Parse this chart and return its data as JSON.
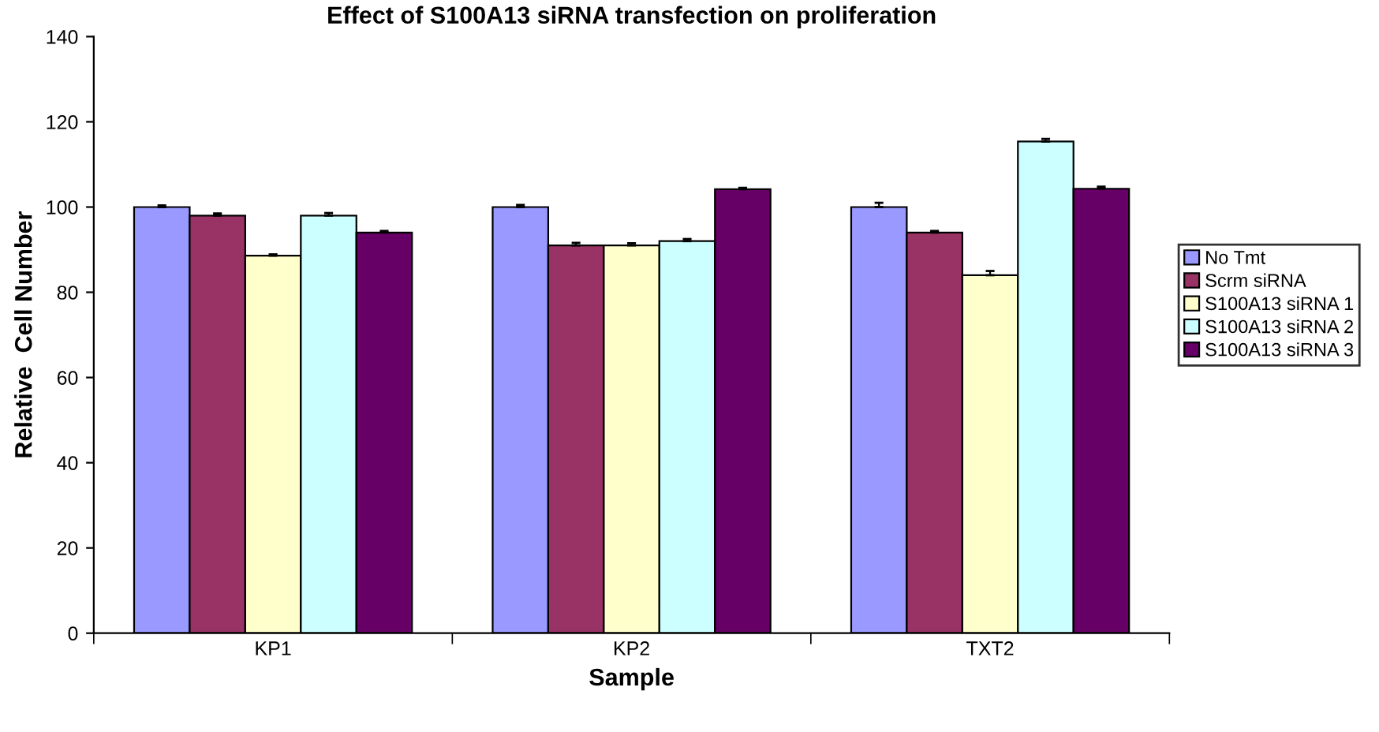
{
  "chart_data": {
    "type": "bar",
    "title": "Effect of S100A13 siRNA transfection on proliferation",
    "xlabel": "Sample",
    "ylabel": "Relative  Cell Number",
    "categories": [
      "KP1",
      "KP2",
      "TXT2"
    ],
    "series": [
      {
        "name": "No Tmt",
        "color": "#9999ff",
        "values": [
          100,
          100,
          100
        ],
        "errors": [
          0.4,
          0.5,
          1.0
        ]
      },
      {
        "name": "Scrm siRNA",
        "color": "#993366",
        "values": [
          98,
          91,
          94
        ],
        "errors": [
          0.5,
          0.6,
          0.4
        ]
      },
      {
        "name": "S100A13 siRNA 1",
        "color": "#ffffcc",
        "values": [
          88.6,
          91,
          84
        ],
        "errors": [
          0.3,
          0.5,
          1.0
        ]
      },
      {
        "name": "S100A13 siRNA 2",
        "color": "#ccffff",
        "values": [
          98,
          92,
          115.4
        ],
        "errors": [
          0.6,
          0.5,
          0.6
        ]
      },
      {
        "name": "S100A13 siRNA 3",
        "color": "#660066",
        "values": [
          94,
          104.2,
          104.3
        ],
        "errors": [
          0.4,
          0.3,
          0.5
        ]
      }
    ],
    "ylim": [
      0,
      140
    ],
    "yticks": [
      0,
      20,
      40,
      60,
      80,
      100,
      120,
      140
    ],
    "grid": false,
    "legend": "right"
  }
}
